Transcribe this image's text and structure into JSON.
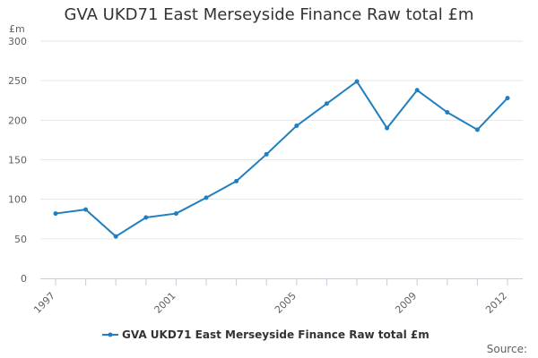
{
  "chart_data": {
    "type": "line",
    "title": "GVA UKD71 East Merseyside Finance Raw total £m",
    "y_unit": "£m",
    "x": [
      1997,
      1998,
      1999,
      2000,
      2001,
      2002,
      2003,
      2004,
      2005,
      2006,
      2007,
      2008,
      2009,
      2010,
      2011,
      2012
    ],
    "x_tick_labels": [
      "1997",
      "2001",
      "2005",
      "2009",
      "2012"
    ],
    "y_tick_labels": [
      "0",
      "50",
      "100",
      "150",
      "200",
      "250",
      "300"
    ],
    "ylim": [
      0,
      300
    ],
    "grid": true,
    "legend_position": "bottom-center",
    "series": [
      {
        "name": "GVA UKD71 East Merseyside Finance Raw total £m",
        "color": "#1f7fbf",
        "values": [
          82,
          87,
          53,
          77,
          82,
          102,
          123,
          157,
          193,
          221,
          249,
          190,
          238,
          210,
          188,
          228
        ]
      }
    ],
    "source_label": "Source:"
  }
}
